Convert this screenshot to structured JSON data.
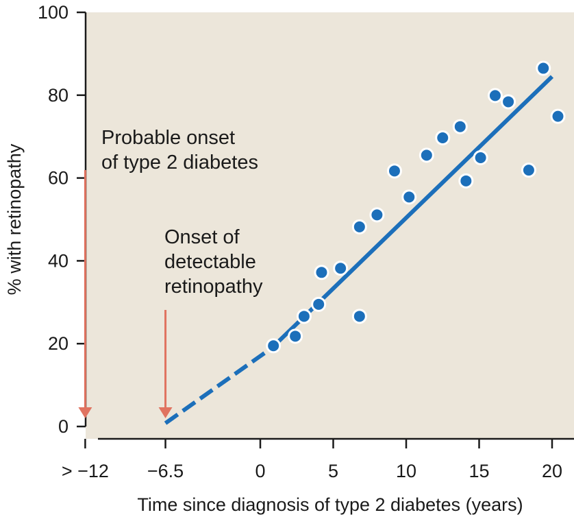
{
  "chart_data": {
    "type": "scatter",
    "xlabel": "Time since diagnosis of type 2 diabetes (years)",
    "ylabel": "% with retinopathy",
    "ylim": [
      0,
      100
    ],
    "y_ticks": [
      0,
      20,
      40,
      60,
      80,
      100
    ],
    "x_ticks": [
      {
        "value": -12,
        "label": "> −12"
      },
      {
        "value": -6.5,
        "label": "−6.5"
      },
      {
        "value": 0,
        "label": "0"
      },
      {
        "value": 5,
        "label": "5"
      },
      {
        "value": 10,
        "label": "10"
      },
      {
        "value": 15,
        "label": "15"
      },
      {
        "value": 20,
        "label": "20"
      }
    ],
    "points": [
      {
        "x": 0.9,
        "y": 19.5
      },
      {
        "x": 2.4,
        "y": 21.8
      },
      {
        "x": 3.0,
        "y": 26.6
      },
      {
        "x": 4.0,
        "y": 29.5
      },
      {
        "x": 4.2,
        "y": 37.2
      },
      {
        "x": 5.5,
        "y": 38.2
      },
      {
        "x": 6.8,
        "y": 26.6
      },
      {
        "x": 6.8,
        "y": 48.2
      },
      {
        "x": 8.0,
        "y": 51.1
      },
      {
        "x": 9.2,
        "y": 61.7
      },
      {
        "x": 10.2,
        "y": 55.4
      },
      {
        "x": 11.4,
        "y": 65.5
      },
      {
        "x": 12.5,
        "y": 69.7
      },
      {
        "x": 13.7,
        "y": 72.4
      },
      {
        "x": 14.1,
        "y": 59.3
      },
      {
        "x": 15.1,
        "y": 64.9
      },
      {
        "x": 16.1,
        "y": 79.9
      },
      {
        "x": 17.0,
        "y": 78.4
      },
      {
        "x": 18.4,
        "y": 61.9
      },
      {
        "x": 19.4,
        "y": 86.5
      },
      {
        "x": 20.4,
        "y": 74.9
      }
    ],
    "trend_line": {
      "start": {
        "x": -6.5,
        "y": 0.8
      },
      "dash_end": {
        "x": 0.8,
        "y": 19.0
      },
      "end": {
        "x": 20.0,
        "y": 84.5
      }
    },
    "annotations": [
      {
        "lines": [
          "Probable onset",
          "of type 2 diabetes"
        ],
        "arrow_x": -12
      },
      {
        "lines": [
          "Onset of",
          "detectable",
          "retinopathy"
        ],
        "arrow_x": -6.5
      }
    ],
    "colors": {
      "plot_background": "#ece6da",
      "points": "#1c6fba",
      "trend_line": "#1c6fba",
      "arrows": "#e07360",
      "axes": "#1a1a1a"
    }
  }
}
